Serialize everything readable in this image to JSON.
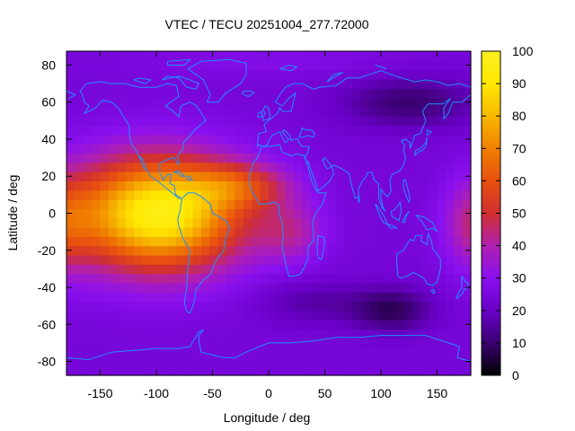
{
  "chart_data": {
    "type": "heatmap",
    "title": "VTEC / TECU 20251004_277.72000",
    "xlabel": "Longitude / deg",
    "ylabel": "Latitude / deg",
    "xlim": [
      -180,
      180
    ],
    "ylim": [
      -87.5,
      87.5
    ],
    "x_ticks": [
      -150,
      -100,
      -50,
      0,
      50,
      100,
      150
    ],
    "y_ticks": [
      -80,
      -60,
      -40,
      -20,
      0,
      20,
      40,
      60,
      80
    ],
    "colorbar": {
      "range": [
        0,
        100
      ],
      "ticks": [
        0,
        10,
        20,
        30,
        40,
        50,
        60,
        70,
        80,
        90,
        100
      ],
      "palette": [
        "#000000",
        "#3a0070",
        "#6a00c8",
        "#8a10f0",
        "#b020b0",
        "#d03030",
        "#e85010",
        "#f08000",
        "#f8b800",
        "#ffe800",
        "#fff020"
      ]
    },
    "overlay": "coastlines",
    "colors": {
      "coastline": "#1e90ff",
      "background_field": "#6a1cf0"
    },
    "features": [
      {
        "type": "max",
        "name": "equatorial-anomaly-peak",
        "lon": -95,
        "lat": 0,
        "value": 95
      },
      {
        "type": "max",
        "name": "secondary-high-east",
        "lon": 180,
        "lat": -5,
        "value": 45
      },
      {
        "type": "min",
        "name": "southern-low",
        "lon": 110,
        "lat": -52,
        "value": 8
      },
      {
        "type": "min",
        "name": "northern-low",
        "lon": 120,
        "lat": 62,
        "value": 10
      }
    ]
  }
}
